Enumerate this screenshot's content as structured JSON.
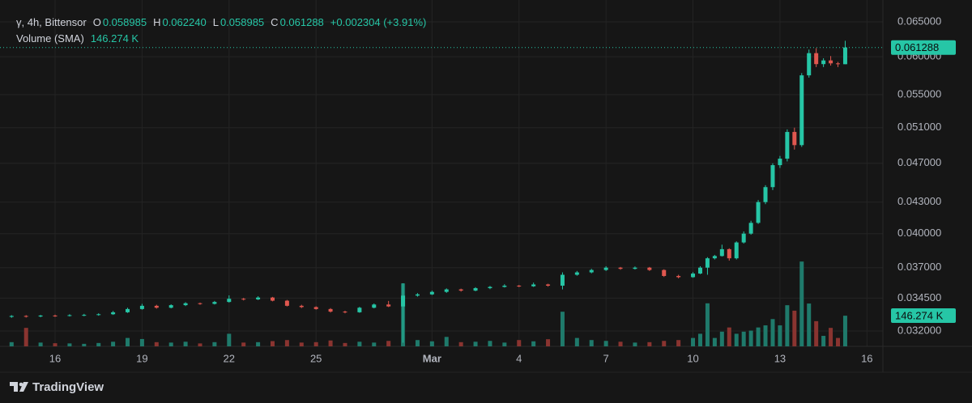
{
  "chart_data": {
    "type": "candlestick",
    "legend": {
      "symbol": "γ, 4h, Bittensor",
      "open_label": "O",
      "open": "0.058985",
      "high_label": "H",
      "high": "0.062240",
      "low_label": "L",
      "low": "0.058985",
      "close_label": "C",
      "close": "0.061288",
      "change": "+0.002304 (+3.91%)",
      "volume_title": "Volume (SMA)"
    },
    "volume_sma": {
      "value": 146.274,
      "label": "146.274 K"
    },
    "brand": "TradingView",
    "log_scale": true,
    "grid": true,
    "up_color": "#26c6a6",
    "down_color": "#e0574f",
    "volume_up_color": "#1f7a6b",
    "volume_down_color": "#8a3430",
    "xlim": [
      14.1,
      44.55
    ],
    "xticks": [
      16,
      19,
      22,
      25,
      {
        "value": 29,
        "label": "Mar"
      },
      {
        "value": 32,
        "label": "4"
      },
      {
        "value": 35,
        "label": "7"
      },
      {
        "value": 38,
        "label": "10"
      },
      {
        "value": 41,
        "label": "13"
      },
      {
        "value": 44,
        "label": "16"
      }
    ],
    "ylim": [
      0.03089,
      0.06834
    ],
    "yticks": [
      {
        "value": 0.032,
        "label": "0.032000"
      },
      {
        "value": 0.0345,
        "label": "0.034500"
      },
      {
        "value": 0.037,
        "label": "0.037000"
      },
      {
        "value": 0.04,
        "label": "0.040000"
      },
      {
        "value": 0.043,
        "label": "0.043000"
      },
      {
        "value": 0.047,
        "label": "0.047000"
      },
      {
        "value": 0.051,
        "label": "0.051000"
      },
      {
        "value": 0.055,
        "label": "0.055000"
      },
      {
        "value": 0.06,
        "label": "0.060000"
      },
      {
        "value": 0.065,
        "label": "0.065000"
      }
    ],
    "vlim": [
      0,
      1650
    ],
    "candles": {
      "x": [
        14.5,
        15,
        15.5,
        16,
        16.5,
        17,
        17.5,
        18,
        18.5,
        19,
        19.5,
        20,
        20.5,
        21,
        21.5,
        22,
        22.5,
        23,
        23.5,
        24,
        24.5,
        25,
        25.5,
        26,
        26.5,
        27,
        27.5,
        28,
        28.5,
        29,
        29.5,
        30,
        30.5,
        31,
        31.5,
        32,
        32.5,
        33,
        33.5,
        34,
        34.5,
        35,
        35.5,
        36,
        36.5,
        37,
        37.5,
        38,
        38.25,
        38.5,
        38.75,
        39,
        39.25,
        39.5,
        39.75,
        40,
        40.25,
        40.5,
        40.75,
        41,
        41.25,
        41.5,
        41.75,
        42,
        42.25,
        42.5,
        42.75,
        43,
        43.25
      ],
      "open": [
        0.03305,
        0.03312,
        0.03308,
        0.03315,
        0.03312,
        0.03318,
        0.0332,
        0.03325,
        0.0334,
        0.03365,
        0.0339,
        0.03375,
        0.03395,
        0.0341,
        0.03405,
        0.0342,
        0.03445,
        0.0344,
        0.03455,
        0.0343,
        0.0339,
        0.0338,
        0.03365,
        0.03345,
        0.0334,
        0.03375,
        0.034,
        0.03385,
        0.0347,
        0.0348,
        0.035,
        0.0352,
        0.0351,
        0.0353,
        0.0354,
        0.0355,
        0.03545,
        0.0356,
        0.0355,
        0.0364,
        0.0366,
        0.0368,
        0.037,
        0.0369,
        0.037,
        0.0368,
        0.0363,
        0.0362,
        0.0365,
        0.037,
        0.0378,
        0.038,
        0.0386,
        0.0378,
        0.0392,
        0.04,
        0.041,
        0.043,
        0.0445,
        0.0468,
        0.0475,
        0.0505,
        0.049,
        0.0575,
        0.0605,
        0.059,
        0.0595,
        0.0591,
        0.058985
      ],
      "high": [
        0.03318,
        0.03318,
        0.0332,
        0.03322,
        0.03325,
        0.03328,
        0.03332,
        0.0335,
        0.03375,
        0.03405,
        0.03398,
        0.03402,
        0.03418,
        0.03415,
        0.03428,
        0.03472,
        0.03452,
        0.03465,
        0.0346,
        0.03436,
        0.03398,
        0.03386,
        0.03372,
        0.03352,
        0.03382,
        0.03408,
        0.03428,
        0.0357,
        0.0349,
        0.0351,
        0.03528,
        0.03526,
        0.03538,
        0.03548,
        0.03562,
        0.03556,
        0.03575,
        0.03566,
        0.0366,
        0.03672,
        0.0369,
        0.03712,
        0.03706,
        0.0371,
        0.03706,
        0.03686,
        0.0364,
        0.03662,
        0.03712,
        0.0379,
        0.0381,
        0.039,
        0.03868,
        0.0393,
        0.0402,
        0.0412,
        0.0432,
        0.0447,
        0.047,
        0.0478,
        0.0508,
        0.051,
        0.0578,
        0.061,
        0.0612,
        0.0598,
        0.0601,
        0.0593,
        0.06224
      ],
      "low": [
        0.03298,
        0.033,
        0.03302,
        0.03305,
        0.03308,
        0.0331,
        0.03314,
        0.0332,
        0.03335,
        0.0336,
        0.03368,
        0.0337,
        0.03388,
        0.03398,
        0.034,
        0.03415,
        0.03432,
        0.03435,
        0.03425,
        0.03385,
        0.03372,
        0.0336,
        0.03338,
        0.03332,
        0.03336,
        0.0337,
        0.0338,
        0.03115,
        0.03462,
        0.03475,
        0.03492,
        0.03502,
        0.03505,
        0.03522,
        0.03535,
        0.03538,
        0.0354,
        0.03542,
        0.0352,
        0.03632,
        0.03652,
        0.03672,
        0.03682,
        0.03684,
        0.03672,
        0.03622,
        0.0361,
        0.03615,
        0.03645,
        0.0364,
        0.0377,
        0.03795,
        0.0376,
        0.0377,
        0.0391,
        0.0399,
        0.0409,
        0.0428,
        0.0442,
        0.0465,
        0.0472,
        0.0485,
        0.0488,
        0.0572,
        0.0586,
        0.0586,
        0.0588,
        0.0586,
        0.058985
      ],
      "close": [
        0.03312,
        0.03308,
        0.03315,
        0.03312,
        0.03318,
        0.0332,
        0.03325,
        0.0334,
        0.03365,
        0.0339,
        0.03375,
        0.03395,
        0.0341,
        0.03405,
        0.0342,
        0.03445,
        0.0344,
        0.03455,
        0.0343,
        0.0339,
        0.0338,
        0.03365,
        0.03345,
        0.0334,
        0.03375,
        0.034,
        0.03385,
        0.0347,
        0.0348,
        0.035,
        0.0352,
        0.0351,
        0.0353,
        0.0354,
        0.0355,
        0.03545,
        0.0356,
        0.0355,
        0.0364,
        0.0366,
        0.0368,
        0.037,
        0.0369,
        0.037,
        0.0368,
        0.0363,
        0.0362,
        0.0365,
        0.037,
        0.0378,
        0.038,
        0.0386,
        0.0378,
        0.0392,
        0.04,
        0.041,
        0.043,
        0.0445,
        0.0468,
        0.0475,
        0.0505,
        0.049,
        0.0575,
        0.0605,
        0.059,
        0.0595,
        0.0591,
        0.058985,
        0.061288
      ],
      "volume": [
        20,
        88,
        18,
        15,
        14,
        12,
        16,
        22,
        40,
        35,
        20,
        18,
        22,
        14,
        20,
        60,
        18,
        20,
        25,
        30,
        18,
        20,
        28,
        16,
        22,
        18,
        26,
        300,
        30,
        24,
        45,
        20,
        22,
        26,
        18,
        30,
        24,
        34,
        165,
        40,
        30,
        26,
        22,
        18,
        20,
        26,
        30,
        40,
        60,
        205,
        40,
        70,
        90,
        60,
        70,
        75,
        90,
        100,
        130,
        100,
        196,
        170,
        404,
        204,
        120,
        50,
        88,
        40,
        146
      ]
    }
  }
}
